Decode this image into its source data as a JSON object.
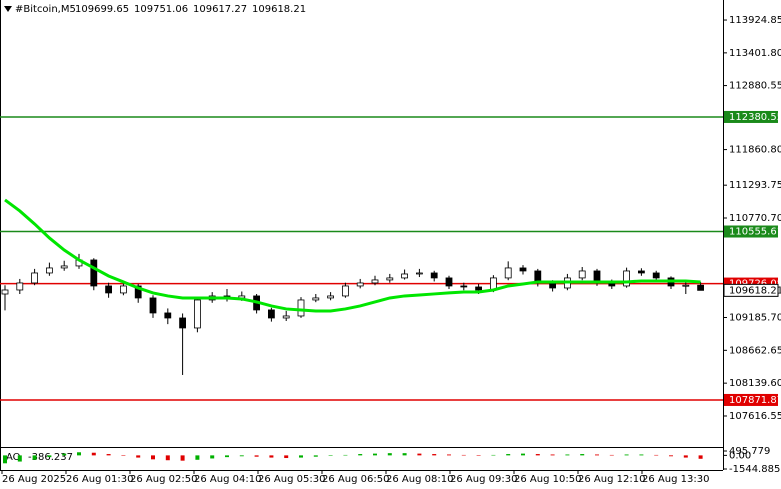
{
  "chart_data": [
    {
      "type": "candlestick",
      "title": "#Bitcoin,M5",
      "open": [
        109560,
        109624,
        109736,
        109895,
        109975,
        110007,
        110102,
        109688,
        109577,
        109688,
        109497,
        109258,
        109178,
        109019,
        109465,
        109529,
        109497,
        109529,
        109306,
        109178,
        109210,
        109465,
        109497,
        109529,
        109688,
        109736,
        109784,
        109816,
        109879,
        109895,
        109816,
        109688,
        109672,
        109624,
        109816,
        109975,
        109927,
        109736,
        109656,
        109816,
        109927,
        109736,
        109688,
        109927,
        109895,
        109816,
        109688,
        109699.65
      ],
      "high": [
        109700,
        109800,
        109960,
        110060,
        110090,
        110200,
        110130,
        109740,
        109760,
        109720,
        109540,
        109330,
        109250,
        109510,
        109590,
        109640,
        109600,
        109560,
        109340,
        109290,
        109510,
        109560,
        109590,
        109740,
        109800,
        109850,
        109880,
        109950,
        109960,
        109930,
        109850,
        109740,
        109720,
        109860,
        110080,
        110020,
        109960,
        109780,
        109880,
        109990,
        109960,
        109790,
        109980,
        109970,
        109930,
        109840,
        109760,
        109751.06
      ],
      "low": [
        109300,
        109560,
        109700,
        109850,
        109930,
        109960,
        109620,
        109500,
        109540,
        109420,
        109180,
        109080,
        108270,
        108950,
        109420,
        109440,
        109450,
        109250,
        109120,
        109130,
        109180,
        109430,
        109460,
        109500,
        109650,
        109700,
        109740,
        109790,
        109830,
        109760,
        109640,
        109620,
        109560,
        109590,
        109780,
        109870,
        109680,
        109600,
        109620,
        109780,
        109690,
        109640,
        109660,
        109850,
        109770,
        109640,
        109560,
        109617.27
      ],
      "close": [
        109624,
        109736,
        109895,
        109975,
        110007,
        110102,
        109688,
        109577,
        109688,
        109497,
        109258,
        109178,
        109019,
        109465,
        109529,
        109497,
        109529,
        109306,
        109178,
        109210,
        109465,
        109497,
        109529,
        109688,
        109736,
        109784,
        109816,
        109879,
        109895,
        109816,
        109688,
        109672,
        109624,
        109816,
        109975,
        109927,
        109736,
        109656,
        109816,
        109927,
        109736,
        109688,
        109927,
        109895,
        109816,
        109688,
        109700,
        109618.21
      ],
      "ma": {
        "color": "#00e600",
        "values": [
          111058,
          110883,
          110676,
          110453,
          110261,
          110102,
          109975,
          109847,
          109752,
          109656,
          109577,
          109529,
          109497,
          109497,
          109497,
          109497,
          109481,
          109433,
          109370,
          109322,
          109306,
          109290,
          109290,
          109322,
          109370,
          109433,
          109497,
          109529,
          109545,
          109561,
          109577,
          109592,
          109592,
          109624,
          109688,
          109720,
          109752,
          109752,
          109752,
          109752,
          109752,
          109752,
          109752,
          109768,
          109768,
          109768,
          109768,
          109752
        ]
      },
      "levels": [
        {
          "value": 112380.55,
          "color": "#1a8a1a"
        },
        {
          "value": 110555.61,
          "color": "#1a8a1a"
        },
        {
          "value": 109726.08,
          "color": "#e00000"
        },
        {
          "value": 107871.87,
          "color": "#e00000"
        }
      ],
      "ylim": [
        107218,
        114244
      ],
      "yticks": [
        {
          "value": 113924.85,
          "label": "113924.85"
        },
        {
          "value": 113401.8,
          "label": "113401.80"
        },
        {
          "value": 112880.55,
          "label": "112880.55"
        },
        {
          "value": 111860.8,
          "label": "111860.80"
        },
        {
          "value": 111293.75,
          "label": "111293.75"
        },
        {
          "value": 110770.7,
          "label": "110770.70"
        },
        {
          "value": 109185.7,
          "label": "109185.70"
        },
        {
          "value": 108662.65,
          "label": "108662.65"
        },
        {
          "value": 108139.6,
          "label": "108139.60"
        },
        {
          "value": 107616.55,
          "label": "107616.55"
        }
      ],
      "time_labels": [
        "26 Aug 2025",
        "26 Aug 01:30",
        "26 Aug 02:50",
        "26 Aug 04:10",
        "26 Aug 05:30",
        "26 Aug 06:50",
        "26 Aug 08:10",
        "26 Aug 09:30",
        "26 Aug 10:50",
        "26 Aug 12:10",
        "26 Aug 13:30"
      ]
    },
    {
      "type": "histogram",
      "title": "AO",
      "up_color": "#00b000",
      "down_color": "#e00000",
      "values": [
        -900,
        -700,
        -500,
        -200,
        200,
        350,
        300,
        150,
        -50,
        -250,
        -450,
        -550,
        -600,
        -500,
        -350,
        -200,
        -100,
        -150,
        -250,
        -300,
        -250,
        -150,
        -50,
        50,
        150,
        200,
        250,
        250,
        200,
        150,
        100,
        50,
        0,
        50,
        150,
        200,
        150,
        100,
        100,
        150,
        100,
        50,
        100,
        100,
        50,
        -100,
        -250,
        -386.237
      ],
      "ylim": [
        -1544.885,
        495.779
      ],
      "yticks": [
        495.779,
        {
          "value": 0,
          "label": "0.00"
        },
        -1544.885
      ]
    }
  ]
}
